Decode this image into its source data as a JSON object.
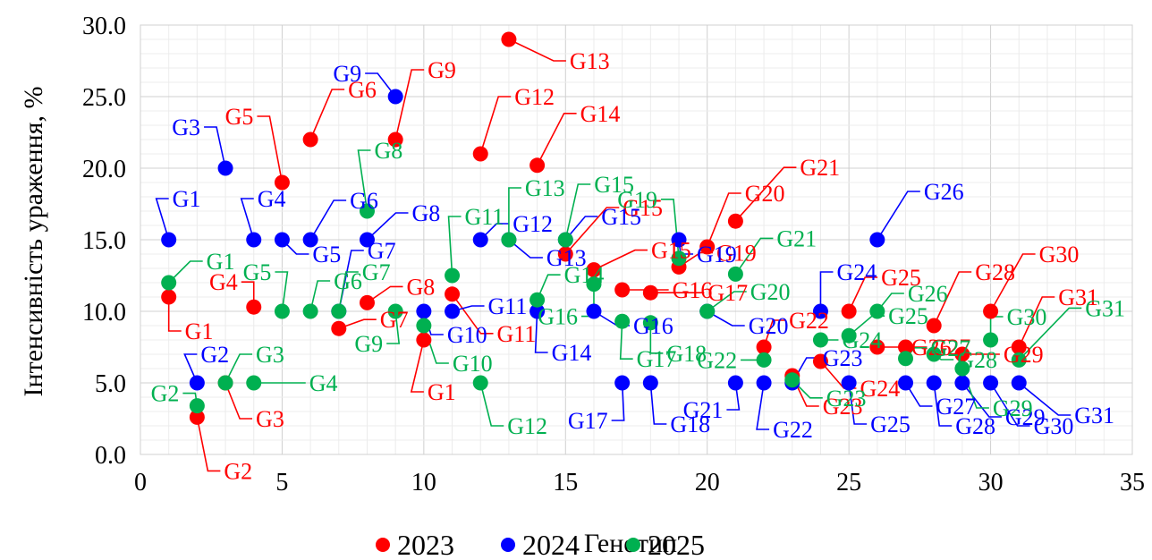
{
  "chart_data": {
    "type": "scatter",
    "xlabel": "Генотип",
    "ylabel": "Інтенсивність ураження, %",
    "xlim": [
      0,
      35
    ],
    "ylim": [
      0,
      30
    ],
    "x_ticks": [
      "0",
      "5",
      "10",
      "15",
      "20",
      "25",
      "30",
      "35"
    ],
    "y_ticks": [
      "0.0",
      "5.0",
      "10.0",
      "15.0",
      "20.0",
      "25.0",
      "30.0"
    ],
    "grid": true,
    "legend_position": "bottom",
    "series": [
      {
        "name": "2023",
        "color": "#ff0000",
        "points": [
          {
            "label": "G1",
            "x": 1,
            "y": 11
          },
          {
            "label": "G2",
            "x": 2,
            "y": 2.6
          },
          {
            "label": "G3",
            "x": 3,
            "y": 5
          },
          {
            "label": "G4",
            "x": 4,
            "y": 10.3
          },
          {
            "label": "G5",
            "x": 5,
            "y": 19
          },
          {
            "label": "G6",
            "x": 6,
            "y": 22
          },
          {
            "label": "G7",
            "x": 7,
            "y": 8.8
          },
          {
            "label": "G8",
            "x": 8,
            "y": 10.6
          },
          {
            "label": "G9",
            "x": 9,
            "y": 22
          },
          {
            "label": "G1",
            "x": 10,
            "y": 8
          },
          {
            "label": "G11",
            "x": 11,
            "y": 11.2
          },
          {
            "label": "G12",
            "x": 12,
            "y": 21
          },
          {
            "label": "G13",
            "x": 13,
            "y": 29
          },
          {
            "label": "G14",
            "x": 14,
            "y": 20.2
          },
          {
            "label": "G15",
            "x": 15,
            "y": 14
          },
          {
            "label": "G15",
            "x": 16,
            "y": 12.9
          },
          {
            "label": "G16",
            "x": 17,
            "y": 11.5
          },
          {
            "label": "G17",
            "x": 18,
            "y": 11.3
          },
          {
            "label": "G19",
            "x": 19,
            "y": 13.1
          },
          {
            "label": "G20",
            "x": 20,
            "y": 14.5
          },
          {
            "label": "G21",
            "x": 21,
            "y": 16.3
          },
          {
            "label": "G22",
            "x": 22,
            "y": 7.5
          },
          {
            "label": "G23",
            "x": 23,
            "y": 5.5
          },
          {
            "label": "G24",
            "x": 24,
            "y": 6.5
          },
          {
            "label": "G25",
            "x": 25,
            "y": 10
          },
          {
            "label": "G26",
            "x": 26,
            "y": 7.5
          },
          {
            "label": "G27",
            "x": 27,
            "y": 7.5
          },
          {
            "label": "G28",
            "x": 28,
            "y": 9
          },
          {
            "label": "G29",
            "x": 29,
            "y": 7
          },
          {
            "label": "G30",
            "x": 30,
            "y": 10
          },
          {
            "label": "G31",
            "x": 31,
            "y": 7.5
          }
        ]
      },
      {
        "name": "2024",
        "color": "#0000ff",
        "points": [
          {
            "label": "G1",
            "x": 1,
            "y": 15
          },
          {
            "label": "G2",
            "x": 2,
            "y": 5
          },
          {
            "label": "G3",
            "x": 3,
            "y": 20
          },
          {
            "label": "G4",
            "x": 4,
            "y": 15
          },
          {
            "label": "G5",
            "x": 5,
            "y": 15
          },
          {
            "label": "G6",
            "x": 6,
            "y": 15
          },
          {
            "label": "G7",
            "x": 7,
            "y": 10
          },
          {
            "label": "G8",
            "x": 8,
            "y": 15
          },
          {
            "label": "G9",
            "x": 9,
            "y": 25
          },
          {
            "label": "G10",
            "x": 10,
            "y": 10
          },
          {
            "label": "G11",
            "x": 11,
            "y": 10
          },
          {
            "label": "G12",
            "x": 12,
            "y": 15
          },
          {
            "label": "G13",
            "x": 13,
            "y": 15
          },
          {
            "label": "G14",
            "x": 14,
            "y": 10
          },
          {
            "label": "G15",
            "x": 15,
            "y": 15
          },
          {
            "label": "G16",
            "x": 16,
            "y": 10
          },
          {
            "label": "G17",
            "x": 17,
            "y": 5
          },
          {
            "label": "G18",
            "x": 18,
            "y": 5
          },
          {
            "label": "G19",
            "x": 19,
            "y": 15
          },
          {
            "label": "G20",
            "x": 20,
            "y": 10
          },
          {
            "label": "G21",
            "x": 21,
            "y": 5
          },
          {
            "label": "G22",
            "x": 22,
            "y": 5
          },
          {
            "label": "G23",
            "x": 23,
            "y": 5
          },
          {
            "label": "G24",
            "x": 24,
            "y": 10
          },
          {
            "label": "G25",
            "x": 25,
            "y": 5
          },
          {
            "label": "G26",
            "x": 26,
            "y": 15
          },
          {
            "label": "G27",
            "x": 27,
            "y": 5
          },
          {
            "label": "G28",
            "x": 28,
            "y": 5
          },
          {
            "label": "G29",
            "x": 29,
            "y": 5
          },
          {
            "label": "G30",
            "x": 30,
            "y": 5
          },
          {
            "label": "G31",
            "x": 31,
            "y": 5
          }
        ]
      },
      {
        "name": "2025",
        "color": "#00b050",
        "points": [
          {
            "label": "G1",
            "x": 1,
            "y": 12
          },
          {
            "label": "G2",
            "x": 2,
            "y": 3.4
          },
          {
            "label": "G3",
            "x": 3,
            "y": 5
          },
          {
            "label": "G4",
            "x": 4,
            "y": 5
          },
          {
            "label": "G5",
            "x": 5,
            "y": 10
          },
          {
            "label": "G6",
            "x": 6,
            "y": 10
          },
          {
            "label": "G7",
            "x": 7,
            "y": 10
          },
          {
            "label": "G8",
            "x": 8,
            "y": 17
          },
          {
            "label": "G9",
            "x": 9,
            "y": 10
          },
          {
            "label": "G10",
            "x": 10,
            "y": 9
          },
          {
            "label": "G11",
            "x": 11,
            "y": 12.5
          },
          {
            "label": "G12",
            "x": 12,
            "y": 5
          },
          {
            "label": "G13",
            "x": 13,
            "y": 15
          },
          {
            "label": "G14",
            "x": 14,
            "y": 10.8
          },
          {
            "label": "G15",
            "x": 15,
            "y": 15
          },
          {
            "label": "G16",
            "x": 16,
            "y": 11.9
          },
          {
            "label": "G17",
            "x": 17,
            "y": 9.3
          },
          {
            "label": "G18",
            "x": 18,
            "y": 9.2
          },
          {
            "label": "G19",
            "x": 19,
            "y": 13.7
          },
          {
            "label": "G20",
            "x": 20,
            "y": 10
          },
          {
            "label": "G21",
            "x": 21,
            "y": 12.6
          },
          {
            "label": "G22",
            "x": 22,
            "y": 6.6
          },
          {
            "label": "G23",
            "x": 23,
            "y": 5.2
          },
          {
            "label": "G24",
            "x": 24,
            "y": 8
          },
          {
            "label": "G25",
            "x": 25,
            "y": 8.3
          },
          {
            "label": "G26",
            "x": 26,
            "y": 10
          },
          {
            "label": "G27",
            "x": 27,
            "y": 6.7
          },
          {
            "label": "G28",
            "x": 28,
            "y": 7
          },
          {
            "label": "G29",
            "x": 29,
            "y": 6
          },
          {
            "label": "G30",
            "x": 30,
            "y": 8
          },
          {
            "label": "G31",
            "x": 31,
            "y": 6.6
          }
        ]
      }
    ]
  }
}
